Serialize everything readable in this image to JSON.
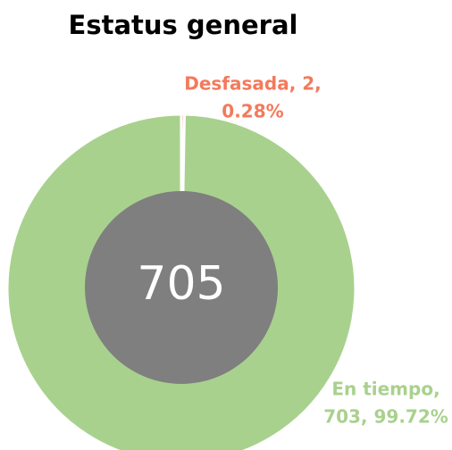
{
  "chart_data": {
    "type": "donut",
    "title": "Estatus general",
    "values": [
      2,
      703
    ],
    "colors": [
      "#f4795b",
      "#a9d18e"
    ],
    "value_labels": [
      [
        "Desfasada, 2,",
        "0.28%"
      ],
      [
        "En tiempo,",
        "703, 99.72%"
      ]
    ],
    "total": 705,
    "center_color": "#7f7f7f"
  }
}
